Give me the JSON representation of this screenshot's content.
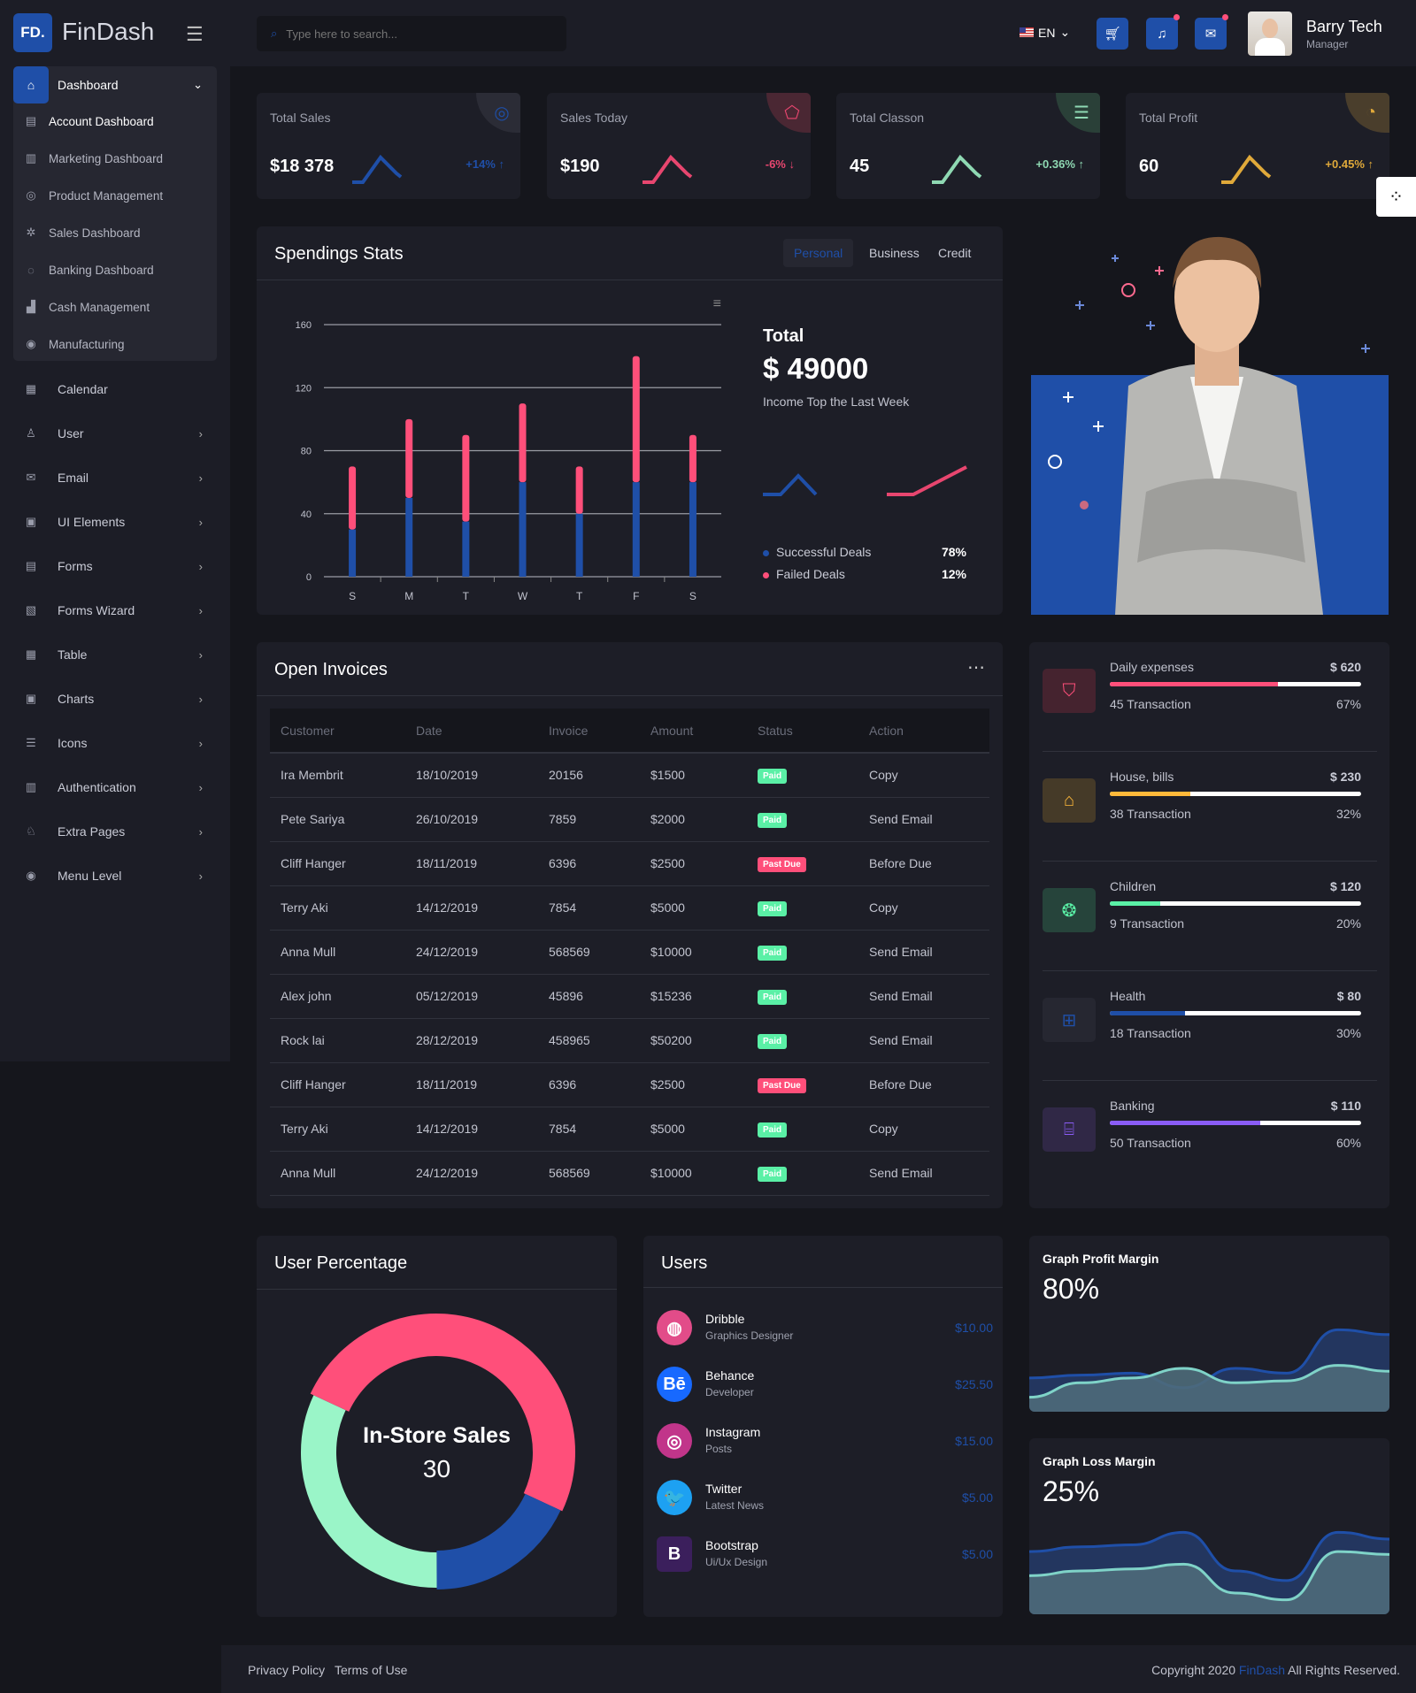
{
  "header": {
    "logo_mark": "FD.",
    "app_name": "FinDash",
    "search_placeholder": "Type here to search...",
    "language": "EN",
    "user_name": "Barry Tech",
    "user_role": "Manager",
    "icons": [
      "menu-icon",
      "search-icon",
      "flag-us-icon",
      "cart-icon",
      "bell-icon",
      "mail-icon"
    ]
  },
  "sidebar": {
    "group": {
      "label": "Dashboard",
      "children": [
        "Account Dashboard",
        "Marketing Dashboard",
        "Product Management",
        "Sales Dashboard",
        "Banking Dashboard",
        "Cash Management",
        "Manufacturing"
      ]
    },
    "items": [
      {
        "label": "Calendar",
        "chev": false
      },
      {
        "label": "User",
        "chev": true
      },
      {
        "label": "Email",
        "chev": true
      },
      {
        "label": "UI Elements",
        "chev": true
      },
      {
        "label": "Forms",
        "chev": true
      },
      {
        "label": "Forms Wizard",
        "chev": true
      },
      {
        "label": "Table",
        "chev": true
      },
      {
        "label": "Charts",
        "chev": true
      },
      {
        "label": "Icons",
        "chev": true
      },
      {
        "label": "Authentication",
        "chev": true
      },
      {
        "label": "Extra Pages",
        "chev": true
      },
      {
        "label": "Menu Level",
        "chev": true
      }
    ]
  },
  "stats": [
    {
      "title": "Total Sales",
      "value": "$18 378",
      "change": "+14%",
      "dir": "up",
      "color": "#1f4fa8"
    },
    {
      "title": "Sales Today",
      "value": "$190",
      "change": "-6%",
      "dir": "down",
      "color": "#e8466f"
    },
    {
      "title": "Total Classon",
      "value": "45",
      "change": "+0.36%",
      "dir": "up",
      "color": "#8fd9b3"
    },
    {
      "title": "Total Profit",
      "value": "60",
      "change": "+0.45%",
      "dir": "up",
      "color": "#e0a93a"
    }
  ],
  "spendings": {
    "title": "Spendings Stats",
    "tabs": [
      "Personal",
      "Business",
      "Credit"
    ],
    "active_tab": "Personal",
    "total_label": "Total",
    "total_value": "$ 49000",
    "subtitle": "Income Top the Last Week",
    "legend": [
      {
        "label": "Successful Deals",
        "value": "78%",
        "color": "#1f4fa8"
      },
      {
        "label": "Failed Deals",
        "value": "12%",
        "color": "#ff4f7a"
      }
    ]
  },
  "chart_data": {
    "type": "bar",
    "stacked": true,
    "categories": [
      "S",
      "M",
      "T",
      "W",
      "T",
      "F",
      "S"
    ],
    "yticks": [
      0,
      40,
      80,
      120,
      160
    ],
    "ylim": [
      0,
      160
    ],
    "series": [
      {
        "name": "Successful Deals",
        "color": "#1f4fa8",
        "values": [
          30,
          50,
          35,
          60,
          40,
          60,
          60
        ]
      },
      {
        "name": "Failed Deals",
        "color": "#ff4f7a",
        "values": [
          40,
          50,
          55,
          50,
          30,
          80,
          30
        ]
      }
    ]
  },
  "invoices": {
    "title": "Open Invoices",
    "columns": [
      "Customer",
      "Date",
      "Invoice",
      "Amount",
      "Status",
      "Action"
    ],
    "rows": [
      [
        "Ira Membrit",
        "18/10/2019",
        "20156",
        "$1500",
        "Paid",
        "Copy"
      ],
      [
        "Pete Sariya",
        "26/10/2019",
        "7859",
        "$2000",
        "Paid",
        "Send Email"
      ],
      [
        "Cliff Hanger",
        "18/11/2019",
        "6396",
        "$2500",
        "Past Due",
        "Before Due"
      ],
      [
        "Terry Aki",
        "14/12/2019",
        "7854",
        "$5000",
        "Paid",
        "Copy"
      ],
      [
        "Anna Mull",
        "24/12/2019",
        "568569",
        "$10000",
        "Paid",
        "Send Email"
      ],
      [
        "Alex john",
        "05/12/2019",
        "45896",
        "$15236",
        "Paid",
        "Send Email"
      ],
      [
        "Rock lai",
        "28/12/2019",
        "458965",
        "$50200",
        "Paid",
        "Send Email"
      ],
      [
        "Cliff Hanger",
        "18/11/2019",
        "6396",
        "$2500",
        "Past Due",
        "Before Due"
      ],
      [
        "Terry Aki",
        "14/12/2019",
        "7854",
        "$5000",
        "Paid",
        "Copy"
      ],
      [
        "Anna Mull",
        "24/12/2019",
        "568569",
        "$10000",
        "Paid",
        "Send Email"
      ]
    ]
  },
  "expenses": [
    {
      "name": "Daily expenses",
      "amount": "$ 620",
      "transactions": "45 Transaction",
      "percent": "67%",
      "pct": 67,
      "color": "#ff4f7a",
      "bg": "#45232f",
      "icon": "bag-icon",
      "glyph": "⛉"
    },
    {
      "name": "House, bills",
      "amount": "$ 230",
      "transactions": "38 Transaction",
      "percent": "32%",
      "pct": 32,
      "color": "#ffb93a",
      "bg": "#453a28",
      "icon": "house-icon",
      "glyph": "⌂"
    },
    {
      "name": "Children",
      "amount": "$ 120",
      "transactions": "9 Transaction",
      "percent": "20%",
      "pct": 20,
      "color": "#5af0a6",
      "bg": "#26443b",
      "icon": "aperture-icon",
      "glyph": "❂"
    },
    {
      "name": "Health",
      "amount": "$ 80",
      "transactions": "18 Transaction",
      "percent": "30%",
      "pct": 30,
      "color": "#1f4fa8",
      "bg": "#262731",
      "icon": "hospital-icon",
      "glyph": "⊞"
    },
    {
      "name": "Banking",
      "amount": "$ 110",
      "transactions": "50 Transaction",
      "percent": "60%",
      "pct": 60,
      "color": "#8a5cf6",
      "bg": "#302846",
      "icon": "bank-icon",
      "glyph": "⌸"
    }
  ],
  "user_percentage": {
    "title": "User Percentage",
    "center_label": "In-Store Sales",
    "center_value": "30",
    "segments": [
      {
        "color": "#ff4f7a",
        "value": 50
      },
      {
        "color": "#1f4fa8",
        "value": 18
      },
      {
        "color": "#9af5c8",
        "value": 32
      }
    ]
  },
  "users": {
    "title": "Users",
    "list": [
      {
        "name": "Dribble",
        "role": "Graphics Designer",
        "amount": "$10.00",
        "glyph": "◍",
        "bg": "#e24c89"
      },
      {
        "name": "Behance",
        "role": "Developer",
        "amount": "$25.50",
        "glyph": "Bē",
        "bg": "#1769ff"
      },
      {
        "name": "Instagram",
        "role": "Posts",
        "amount": "$15.00",
        "glyph": "◎",
        "bg": "#c1358a"
      },
      {
        "name": "Twitter",
        "role": "Latest News",
        "amount": "$5.00",
        "glyph": "🐦",
        "bg": "#1da1f2"
      },
      {
        "name": "Bootstrap",
        "role": "Ui/Ux Design",
        "amount": "$5.00",
        "glyph": "B",
        "bg": "#3b1f5c"
      }
    ]
  },
  "profit": {
    "title": "Graph Profit Margin",
    "value": "80%",
    "series_a": [
      35,
      38,
      40,
      25,
      45,
      40,
      85,
      80
    ],
    "series_b": [
      15,
      30,
      35,
      45,
      30,
      32,
      48,
      42
    ]
  },
  "loss": {
    "title": "Graph Loss Margin",
    "value": "25%",
    "series_a": [
      65,
      70,
      72,
      85,
      45,
      35,
      85,
      78
    ],
    "series_b": [
      40,
      45,
      47,
      52,
      22,
      15,
      65,
      62
    ]
  },
  "footer": {
    "privacy": "Privacy Policy",
    "terms": "Terms of Use",
    "copyright_prefix": "Copyright 2020",
    "brand": "FinDash",
    "copyright_suffix": "All Rights Reserved."
  }
}
